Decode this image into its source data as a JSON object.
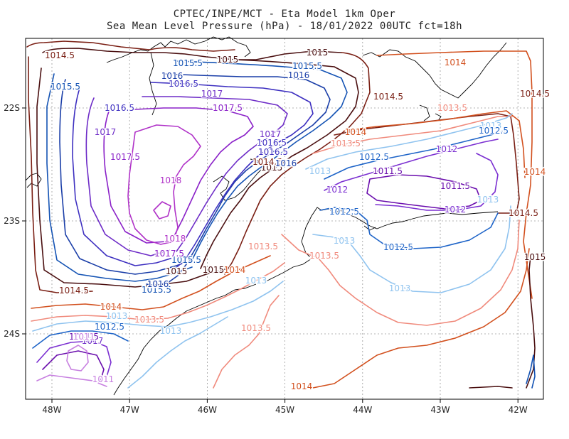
{
  "title_line1": "CPTEC/INPE/MCT -  Eta Model 1km Oper",
  "title_line2": "Sea Mean Level Pressure (hPa) - 18/01/2022 00UTC fct=18h",
  "x_ticks": [
    {
      "label": "48W",
      "lon": -48
    },
    {
      "label": "47W",
      "lon": -47
    },
    {
      "label": "46W",
      "lon": -46
    },
    {
      "label": "45W",
      "lon": -45
    },
    {
      "label": "44W",
      "lon": -44
    },
    {
      "label": "43W",
      "lon": -43
    },
    {
      "label": "42W",
      "lon": -42
    }
  ],
  "y_ticks": [
    {
      "label": "22S",
      "lat": -22
    },
    {
      "label": "23S",
      "lat": -23
    },
    {
      "label": "24S",
      "lat": -24
    }
  ],
  "contour_colors": {
    "1011": "#c77fe0",
    "1011.5": "#6a0dad",
    "1012": "#7b2fd1",
    "1012.5": "#1e64c8",
    "1013": "#8fc3ef",
    "1013.5": "#f08a7c",
    "1014": "#d2501e",
    "1014.5": "#7a1f14",
    "1015": "#4a0f10",
    "1015.5": "#1453b4",
    "1016": "#1a3ea8",
    "1016.5": "#3d2fc0",
    "1017": "#6d2bc7",
    "1017.5": "#8a20c8",
    "1018": "#b032c8"
  },
  "contour_labels": [
    {
      "text": "1015",
      "level": "1015"
    },
    {
      "text": "1015",
      "level": "1015"
    },
    {
      "text": "1015",
      "level": "1015"
    },
    {
      "text": "1015",
      "level": "1015"
    },
    {
      "text": "1015",
      "level": "1015"
    },
    {
      "text": "1015",
      "level": "1015"
    },
    {
      "text": "1014.5",
      "level": "1014.5"
    },
    {
      "text": "1014.5",
      "level": "1014.5"
    },
    {
      "text": "1014.5",
      "level": "1014.5"
    },
    {
      "text": "1014.5",
      "level": "1014.5"
    },
    {
      "text": "1014.5",
      "level": "1014.5"
    },
    {
      "text": "1014.5",
      "level": "1014.5"
    },
    {
      "text": "1014",
      "level": "1014"
    },
    {
      "text": "1014",
      "level": "1014"
    },
    {
      "text": "1014",
      "level": "1014"
    },
    {
      "text": "1014",
      "level": "1014"
    },
    {
      "text": "1014",
      "level": "1014"
    },
    {
      "text": "1014",
      "level": "1014"
    },
    {
      "text": "1015.5",
      "level": "1015.5"
    },
    {
      "text": "1015.5",
      "level": "1015.5"
    },
    {
      "text": "1015.5",
      "level": "1015.5"
    },
    {
      "text": "1015.5",
      "level": "1015.5"
    },
    {
      "text": "1015.5",
      "level": "1015.5"
    },
    {
      "text": "1016",
      "level": "1016"
    },
    {
      "text": "1016",
      "level": "1016"
    },
    {
      "text": "1016",
      "level": "1016"
    },
    {
      "text": "1016",
      "level": "1016"
    },
    {
      "text": "1016.5",
      "level": "1016.5"
    },
    {
      "text": "1016.5",
      "level": "1016.5"
    },
    {
      "text": "1016.5",
      "level": "1016.5"
    },
    {
      "text": "1016.5",
      "level": "1016.5"
    },
    {
      "text": "1017",
      "level": "1017"
    },
    {
      "text": "1017",
      "level": "1017"
    },
    {
      "text": "1017",
      "level": "1017"
    },
    {
      "text": "1017",
      "level": "1017"
    },
    {
      "text": "1017.5",
      "level": "1017.5"
    },
    {
      "text": "1017.5",
      "level": "1017.5"
    },
    {
      "text": "1017.5",
      "level": "1017.5"
    },
    {
      "text": "1018",
      "level": "1018"
    },
    {
      "text": "1018",
      "level": "1018"
    },
    {
      "text": "1013.5",
      "level": "1013.5"
    },
    {
      "text": "1013.5",
      "level": "1013.5"
    },
    {
      "text": "1013.5",
      "level": "1013.5"
    },
    {
      "text": "1013.5",
      "level": "1013.5"
    },
    {
      "text": "1013.5",
      "level": "1013.5"
    },
    {
      "text": "1013.5",
      "level": "1013.5"
    },
    {
      "text": "1013",
      "level": "1013"
    },
    {
      "text": "1013",
      "level": "1013"
    },
    {
      "text": "1013",
      "level": "1013"
    },
    {
      "text": "1013",
      "level": "1013"
    },
    {
      "text": "1013",
      "level": "1013"
    },
    {
      "text": "1013",
      "level": "1013"
    },
    {
      "text": "1013",
      "level": "1013"
    },
    {
      "text": "1013",
      "level": "1013"
    },
    {
      "text": "1012.5",
      "level": "1012.5"
    },
    {
      "text": "1012.5",
      "level": "1012.5"
    },
    {
      "text": "1012.5",
      "level": "1012.5"
    },
    {
      "text": "1012.5",
      "level": "1012.5"
    },
    {
      "text": "1012.5",
      "level": "1012.5"
    },
    {
      "text": "1012",
      "level": "1012"
    },
    {
      "text": "1012",
      "level": "1012"
    },
    {
      "text": "1012",
      "level": "1012"
    },
    {
      "text": "1011.5",
      "level": "1011.5"
    },
    {
      "text": "1011.5",
      "level": "1011.5"
    },
    {
      "text": "1011.5",
      "level": "1011.5"
    },
    {
      "text": "1011",
      "level": "1011"
    },
    {
      "text": "1011",
      "level": "1011"
    }
  ]
}
